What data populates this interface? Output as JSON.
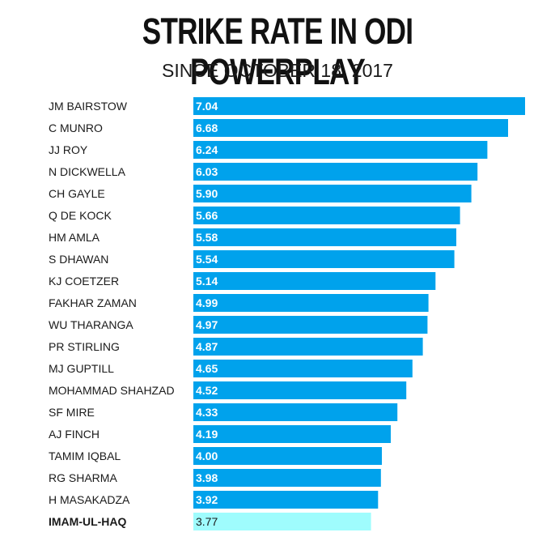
{
  "chart_data": {
    "type": "bar",
    "orientation": "horizontal",
    "title": "STRIKE RATE IN ODI POWERPLAY",
    "subtitle": "SINCE OCTOBER 18, 2017",
    "categories": [
      "JM BAIRSTOW",
      "C MUNRO",
      "JJ ROY",
      "N DICKWELLA",
      "CH GAYLE",
      "Q DE KOCK",
      "HM AMLA",
      "S DHAWAN",
      "KJ COETZER",
      "FAKHAR ZAMAN",
      "WU THARANGA",
      "PR STIRLING",
      "MJ GUPTILL",
      "MOHAMMAD SHAHZAD",
      "SF MIRE",
      "AJ FINCH",
      "TAMIM IQBAL",
      "RG SHARMA",
      "H MASAKADZA",
      "IMAM-UL-HAQ"
    ],
    "value_labels": [
      "7.04",
      "6.68",
      "6.24",
      "6.03",
      "5.90",
      "5.66",
      "5.58",
      "5.54",
      "5.14",
      "4.99",
      "4.97",
      "4.87",
      "4.65",
      "4.52",
      "4.33",
      "4.19",
      "4.00",
      "3.98",
      "3.92",
      "3.77"
    ],
    "values": [
      7.04,
      6.68,
      6.24,
      6.03,
      5.9,
      5.66,
      5.58,
      5.54,
      5.14,
      4.99,
      4.97,
      4.87,
      4.65,
      4.52,
      4.33,
      4.19,
      4.0,
      3.98,
      3.92,
      3.77
    ],
    "highlight": "IMAM-UL-HAQ",
    "colors": {
      "bar": "#00a2ec",
      "highlight": "#9ffcfd"
    },
    "xlim": [
      0,
      7.04
    ]
  }
}
